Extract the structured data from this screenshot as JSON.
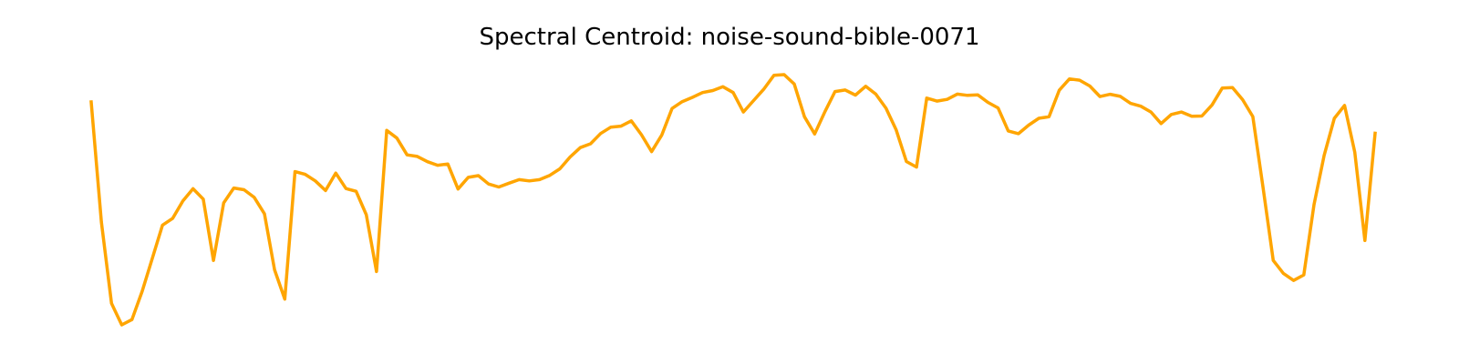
{
  "chart_data": {
    "type": "line",
    "title": "Spectral Centroid: noise-sound-bible-0071",
    "xlabel": "",
    "ylabel": "",
    "axes_visible": false,
    "grid": false,
    "color": "#FFA500",
    "x": [
      0,
      1,
      2,
      3,
      4,
      5,
      6,
      7,
      8,
      9,
      10,
      11,
      12,
      13,
      14,
      15,
      16,
      17,
      18,
      19,
      20,
      21,
      22,
      23,
      24,
      25,
      26,
      27,
      28,
      29,
      30,
      31,
      32,
      33,
      34,
      35,
      36,
      37,
      38,
      39,
      40,
      41,
      42,
      43,
      44,
      45,
      46,
      47,
      48,
      49,
      50,
      51,
      52,
      53,
      54,
      55,
      56,
      57,
      58,
      59,
      60,
      61,
      62,
      63,
      64,
      65,
      66,
      67,
      68,
      69,
      70,
      71,
      72,
      73,
      74,
      75,
      76,
      77,
      78,
      79,
      80,
      81,
      82,
      83,
      84,
      85,
      86,
      87,
      88,
      89,
      90,
      91,
      92,
      93,
      94,
      95,
      96,
      97,
      98,
      99,
      100,
      101,
      102,
      103,
      104,
      105,
      106,
      107,
      108,
      109,
      110,
      111,
      112,
      113,
      114,
      115,
      116,
      117,
      118,
      119,
      120,
      121,
      122,
      123,
      124,
      125,
      126
    ],
    "values": [
      0.888,
      0.412,
      0.09,
      0.005,
      0.026,
      0.138,
      0.268,
      0.4,
      0.427,
      0.496,
      0.544,
      0.503,
      0.26,
      0.488,
      0.547,
      0.54,
      0.51,
      0.445,
      0.223,
      0.107,
      0.612,
      0.601,
      0.575,
      0.537,
      0.606,
      0.545,
      0.534,
      0.441,
      0.216,
      0.775,
      0.745,
      0.678,
      0.672,
      0.651,
      0.637,
      0.642,
      0.543,
      0.589,
      0.596,
      0.563,
      0.551,
      0.566,
      0.58,
      0.575,
      0.58,
      0.597,
      0.623,
      0.67,
      0.707,
      0.722,
      0.763,
      0.788,
      0.792,
      0.813,
      0.758,
      0.691,
      0.757,
      0.862,
      0.889,
      0.906,
      0.925,
      0.933,
      0.948,
      0.925,
      0.848,
      0.893,
      0.938,
      0.993,
      0.996,
      0.959,
      0.829,
      0.761,
      0.849,
      0.929,
      0.935,
      0.915,
      0.95,
      0.919,
      0.863,
      0.777,
      0.652,
      0.63,
      0.903,
      0.891,
      0.898,
      0.919,
      0.914,
      0.916,
      0.886,
      0.864,
      0.773,
      0.762,
      0.796,
      0.823,
      0.829,
      0.934,
      0.979,
      0.974,
      0.951,
      0.909,
      0.918,
      0.91,
      0.882,
      0.871,
      0.848,
      0.802,
      0.838,
      0.848,
      0.831,
      0.832,
      0.876,
      0.943,
      0.945,
      0.897,
      0.83,
      0.549,
      0.26,
      0.209,
      0.181,
      0.203,
      0.481,
      0.676,
      0.823,
      0.874,
      0.689,
      0.339,
      0.764
    ]
  }
}
